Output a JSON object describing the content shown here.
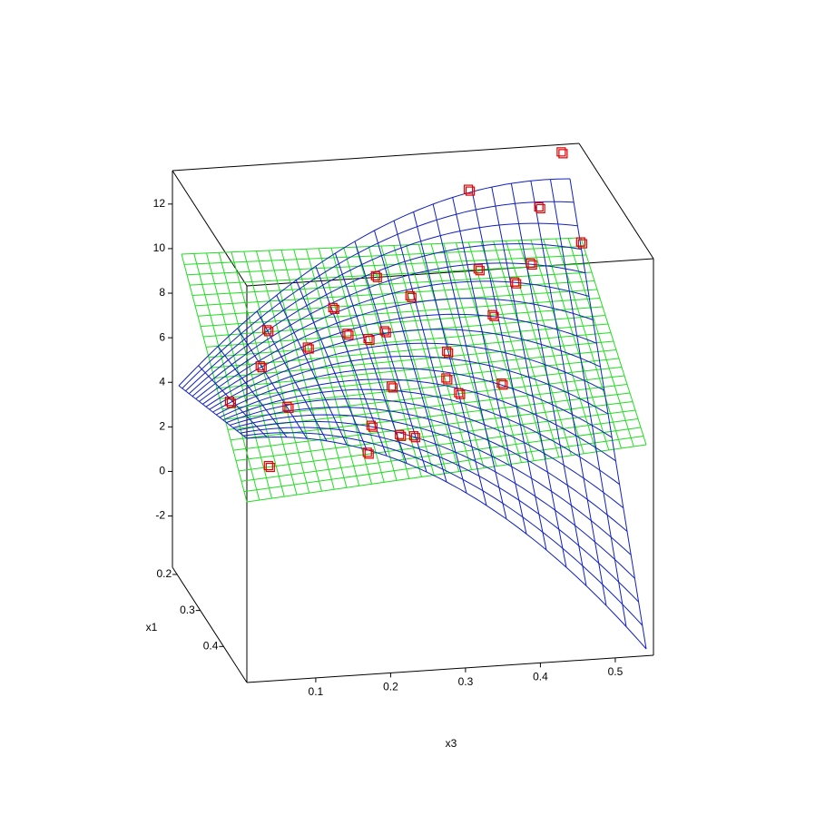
{
  "chart_data": {
    "type": "scatter3d",
    "xlabel": "x3",
    "ylabel": "x1",
    "xlim": [
      0.008,
      0.551
    ],
    "ylim": [
      0.18,
      0.5
    ],
    "zlim": [
      -4.3,
      13.5
    ],
    "xticks": [
      0.1,
      0.2,
      0.3,
      0.4,
      0.5
    ],
    "yticks": [
      0.2,
      0.3,
      0.4
    ],
    "zticks": [
      -2,
      0,
      2,
      4,
      6,
      8,
      10,
      12
    ],
    "color": "#e00000",
    "x": [
      0.503,
      0.379,
      0.473,
      0.529,
      0.462,
      0.392,
      0.255,
      0.441,
      0.301,
      0.198,
      0.411,
      0.11,
      0.217,
      0.267,
      0.245,
      0.164,
      0.35,
      0.101,
      0.349,
      0.423,
      0.276,
      0.366,
      0.06,
      0.137,
      0.249,
      0.287,
      0.306,
      0.244,
      0.112
    ],
    "y": [
      0.26,
      0.26,
      0.26,
      0.26,
      0.26,
      0.26,
      0.26,
      0.26,
      0.26,
      0.26,
      0.26,
      0.26,
      0.26,
      0.26,
      0.26,
      0.26,
      0.26,
      0.26,
      0.26,
      0.26,
      0.26,
      0.26,
      0.26,
      0.26,
      0.26,
      0.26,
      0.26,
      0.26,
      0.26
    ],
    "z": [
      14.5,
      13.1,
      12.1,
      10.4,
      9.6,
      9.5,
      9.5,
      8.8,
      8.5,
      8.2,
      7.4,
      7.4,
      7.0,
      7.0,
      6.7,
      6.5,
      5.9,
      5.8,
      4.7,
      4.3,
      4.5,
      4.0,
      4.3,
      3.9,
      2.8,
      2.3,
      2.2,
      1.6,
      1.3
    ]
  }
}
